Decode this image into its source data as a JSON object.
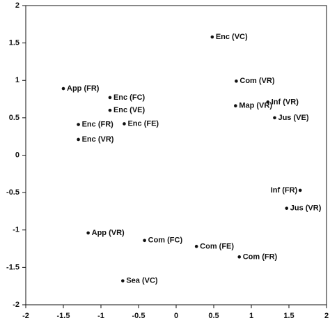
{
  "chart_data": {
    "type": "scatter",
    "labels": [
      "Enc (VC)",
      "App (FR)",
      "Enc (FC)",
      "Enc (VE)",
      "Enc (FR)",
      "Enc (FE)",
      "Enc (VR)",
      "Com (VR)",
      "Map (VR)",
      "Inf (VR)",
      "Jus (VE)",
      "Inf (FR)",
      "Jus (VR)",
      "App (VR)",
      "Com (FC)",
      "Com (FE)",
      "Com (FR)",
      "Sea (VC)"
    ],
    "x": [
      0.48,
      -1.5,
      -0.88,
      -0.88,
      -1.3,
      -0.69,
      -1.3,
      0.8,
      0.79,
      1.22,
      1.31,
      1.65,
      1.47,
      -1.17,
      -0.42,
      0.27,
      0.84,
      -0.71
    ],
    "values": [
      1.58,
      0.89,
      0.77,
      0.6,
      0.41,
      0.42,
      0.21,
      0.99,
      0.66,
      0.71,
      0.5,
      -0.47,
      -0.71,
      -1.04,
      -1.14,
      -1.22,
      -1.36,
      -1.68
    ],
    "color": "#111111",
    "xlim": [
      -2,
      2
    ],
    "ylim": [
      -2,
      2
    ],
    "xticks": [
      -2,
      -1.5,
      -1,
      -0.5,
      0,
      0.5,
      1,
      1.5,
      2
    ],
    "yticks": [
      -2,
      -1.5,
      -1,
      -0.5,
      0,
      0.5,
      1,
      1.5,
      2
    ],
    "grid": false
  }
}
